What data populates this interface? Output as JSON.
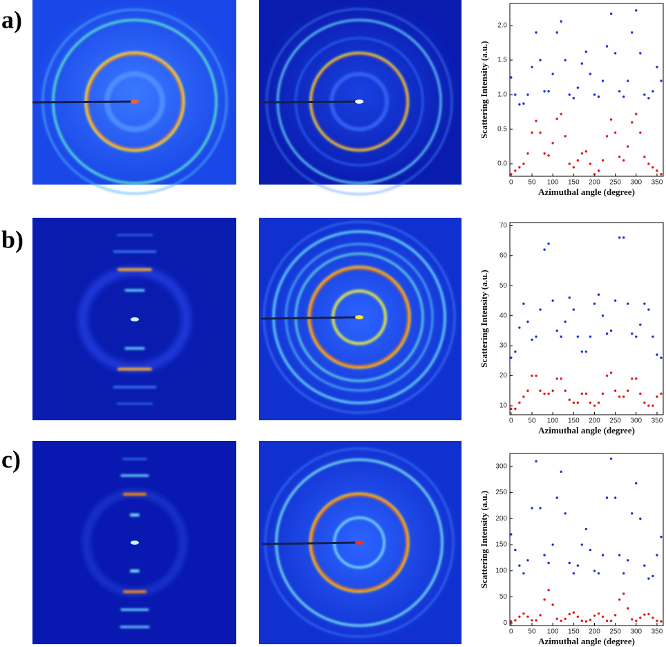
{
  "panel_labels": [
    "a)",
    "b)",
    "c)"
  ],
  "chart_data": [
    {
      "type": "scatter",
      "xlabel": "Azimuthal angle (degree)",
      "ylabel": "Scattering Intensity (a.u.)",
      "x": [
        0,
        10,
        20,
        30,
        40,
        50,
        60,
        70,
        80,
        90,
        100,
        110,
        120,
        130,
        140,
        150,
        160,
        170,
        180,
        190,
        200,
        210,
        220,
        230,
        240,
        250,
        260,
        270,
        280,
        290,
        300,
        310,
        320,
        330,
        340,
        350,
        360
      ],
      "xlim": [
        -3,
        365
      ],
      "xticks": [
        0,
        50,
        100,
        150,
        200,
        250,
        300,
        350
      ],
      "ylim": [
        -0.18,
        2.32
      ],
      "yticks": [
        {
          "value": 0,
          "label": "0.0"
        },
        0.5,
        {
          "value": 1,
          "label": "1.0"
        },
        1.5,
        {
          "value": 2,
          "label": "2.0"
        }
      ],
      "series": [
        {
          "color": "#1a2ee0",
          "values": [
            1.25,
            1.0,
            0.86,
            0.87,
            1.0,
            1.4,
            1.9,
            1.5,
            1.05,
            1.05,
            1.3,
            1.9,
            2.06,
            1.5,
            1.0,
            0.95,
            1.1,
            1.45,
            1.62,
            1.3,
            1.0,
            0.97,
            1.2,
            1.7,
            2.17,
            1.6,
            1.05,
            0.97,
            1.2,
            1.9,
            2.22,
            1.6,
            1.0,
            0.95,
            1.05,
            1.4,
            1.2
          ]
        },
        {
          "color": "#e01818",
          "values": [
            -0.15,
            -0.1,
            -0.05,
            0.0,
            0.15,
            0.45,
            0.62,
            0.45,
            0.15,
            0.12,
            0.3,
            0.65,
            0.72,
            0.4,
            0.0,
            -0.05,
            0.05,
            0.15,
            0.18,
            0.0,
            -0.15,
            -0.1,
            0.05,
            0.4,
            0.64,
            0.45,
            0.1,
            0.05,
            0.25,
            0.6,
            0.72,
            0.45,
            0.1,
            0.0,
            -0.05,
            -0.1,
            -0.15
          ]
        }
      ]
    },
    {
      "type": "scatter",
      "xlabel": "Azimuthal angle (degree)",
      "ylabel": "Scattering Intensity (a.u.)",
      "x": [
        0,
        10,
        20,
        30,
        40,
        50,
        60,
        70,
        80,
        90,
        100,
        110,
        120,
        130,
        140,
        150,
        160,
        170,
        180,
        190,
        200,
        210,
        220,
        230,
        240,
        250,
        260,
        270,
        280,
        290,
        300,
        310,
        320,
        330,
        340,
        350,
        360
      ],
      "xlim": [
        -3,
        365
      ],
      "xticks": [
        0,
        50,
        100,
        150,
        200,
        250,
        300,
        350
      ],
      "ylim": [
        7,
        71
      ],
      "yticks": [
        10,
        20,
        30,
        40,
        50,
        60,
        70
      ],
      "series": [
        {
          "color": "#1a2ee0",
          "values": [
            26,
            28,
            36,
            44,
            38,
            32,
            33,
            42,
            62,
            64,
            45,
            35,
            33,
            38,
            46,
            42,
            33,
            28,
            28,
            33,
            44,
            47,
            40,
            34,
            35,
            45,
            66,
            66,
            44,
            34,
            33,
            37,
            44,
            42,
            33,
            27,
            26
          ]
        },
        {
          "color": "#e01818",
          "values": [
            9,
            9,
            11,
            13,
            15,
            20,
            20,
            15,
            14,
            14,
            15,
            19,
            19,
            15,
            12,
            11,
            11,
            14,
            14,
            11,
            10,
            11,
            14,
            20,
            21,
            15,
            13,
            13,
            15,
            19,
            19,
            14,
            11,
            10,
            10,
            13,
            14
          ]
        }
      ]
    },
    {
      "type": "scatter",
      "xlabel": "Azimuthal angle (degree)",
      "ylabel": "Scattering Intensity (a.u.)",
      "x": [
        0,
        10,
        20,
        30,
        40,
        50,
        60,
        70,
        80,
        90,
        100,
        110,
        120,
        130,
        140,
        150,
        160,
        170,
        180,
        190,
        200,
        210,
        220,
        230,
        240,
        250,
        260,
        270,
        280,
        290,
        300,
        310,
        320,
        330,
        340,
        350,
        360
      ],
      "xlim": [
        -3,
        365
      ],
      "xticks": [
        0,
        50,
        100,
        150,
        200,
        250,
        300,
        350
      ],
      "ylim": [
        -5,
        325
      ],
      "yticks": [
        0,
        50,
        100,
        150,
        200,
        250,
        300
      ],
      "series": [
        {
          "color": "#1a2ee0",
          "values": [
            170,
            140,
            110,
            95,
            120,
            220,
            310,
            220,
            130,
            115,
            150,
            240,
            290,
            210,
            115,
            95,
            110,
            150,
            180,
            140,
            100,
            95,
            130,
            240,
            315,
            240,
            130,
            95,
            120,
            210,
            268,
            200,
            110,
            85,
            90,
            130,
            165
          ]
        },
        {
          "color": "#e01818",
          "values": [
            3,
            5,
            12,
            18,
            12,
            5,
            5,
            15,
            45,
            63,
            35,
            8,
            4,
            8,
            17,
            20,
            12,
            4,
            3,
            6,
            14,
            18,
            12,
            4,
            4,
            15,
            45,
            56,
            28,
            7,
            4,
            10,
            16,
            17,
            10,
            4,
            3
          ]
        }
      ]
    }
  ]
}
